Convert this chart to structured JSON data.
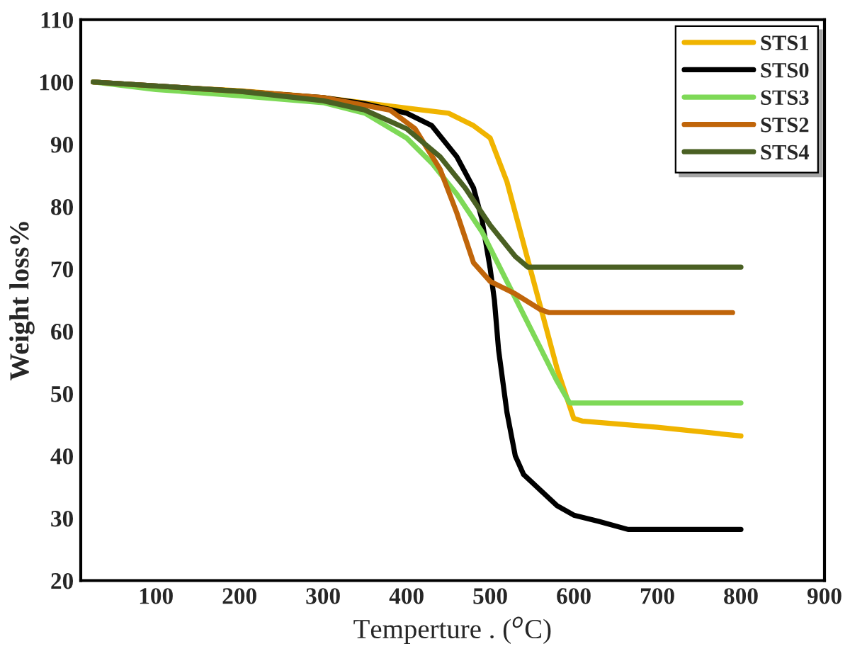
{
  "chart_data": {
    "type": "line",
    "xlabel": "Temperture . ($^{o}$C)",
    "ylabel": "Weight loss%",
    "xlim": [
      10,
      900
    ],
    "xticks": [
      100,
      200,
      300,
      400,
      500,
      600,
      700,
      800,
      900
    ],
    "ylim": [
      20,
      110
    ],
    "yticks": [
      20,
      30,
      40,
      50,
      60,
      70,
      80,
      90,
      100,
      110
    ],
    "grid": false,
    "legend": "top right",
    "marker": "none",
    "line_style": "solid",
    "series": [
      {
        "name": "STS1",
        "color": "#f0b400",
        "x": [
          25,
          100,
          200,
          300,
          400,
          450,
          480,
          500,
          520,
          540,
          560,
          580,
          600,
          610,
          700,
          800
        ],
        "values": [
          100,
          99.3,
          98.6,
          97.5,
          95.8,
          95,
          93,
          91,
          84,
          74,
          64,
          54,
          46,
          45.6,
          44.6,
          43.2
        ]
      },
      {
        "name": "STS0",
        "color": "#000000",
        "x": [
          25,
          200,
          300,
          350,
          400,
          430,
          460,
          480,
          490,
          500,
          505,
          510,
          520,
          530,
          540,
          560,
          580,
          600,
          630,
          665,
          800
        ],
        "values": [
          100,
          98.5,
          97.5,
          96.5,
          95,
          93,
          88,
          83,
          78,
          70,
          65,
          57,
          47,
          40,
          37,
          34.5,
          32,
          30.5,
          29.5,
          28.2,
          28.2
        ]
      },
      {
        "name": "STS3",
        "color": "#7ed957",
        "x": [
          25,
          100,
          200,
          300,
          350,
          400,
          430,
          460,
          490,
          520,
          550,
          580,
          595,
          800
        ],
        "values": [
          100,
          98.8,
          97.8,
          96.7,
          95,
          91,
          87,
          82,
          76,
          68,
          60,
          52,
          48.5,
          48.5
        ]
      },
      {
        "name": "STS2",
        "color": "#c0650a",
        "x": [
          25,
          200,
          300,
          380,
          410,
          440,
          460,
          480,
          500,
          530,
          560,
          570,
          790
        ],
        "values": [
          100,
          98.5,
          97.5,
          95.5,
          92.5,
          86,
          79,
          71,
          68,
          66,
          63.5,
          63,
          63
        ]
      },
      {
        "name": "STS4",
        "color": "#4a6023",
        "x": [
          25,
          200,
          300,
          350,
          400,
          440,
          470,
          500,
          530,
          545,
          800
        ],
        "values": [
          100,
          98.5,
          97,
          95.5,
          92.5,
          88,
          83,
          77,
          72,
          70.3,
          70.3
        ]
      }
    ]
  }
}
